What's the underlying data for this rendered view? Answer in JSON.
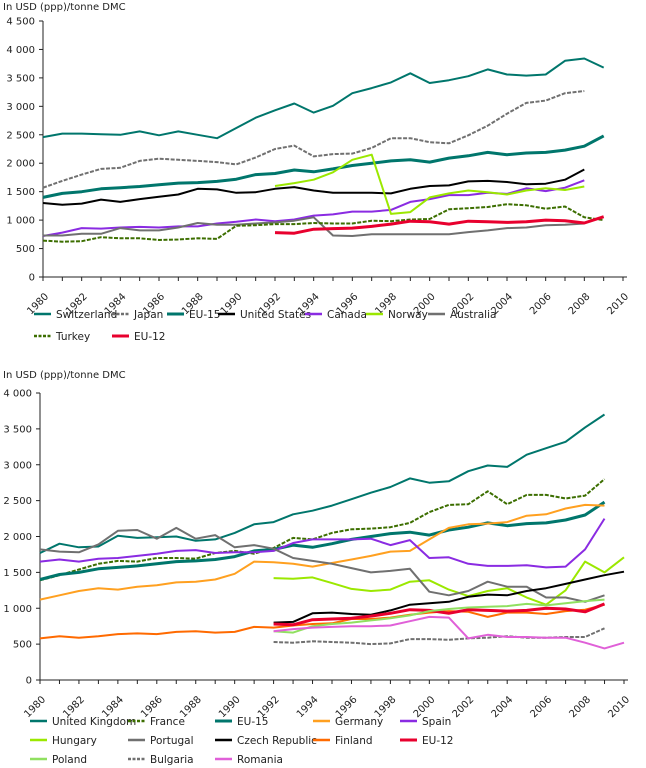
{
  "chart_data": [
    {
      "type": "line",
      "title": "",
      "ylabel": "In USD (ppp)/tonne DMC",
      "xlabel": "",
      "ylim": [
        0,
        4500
      ],
      "xlim": [
        1980,
        2010
      ],
      "yticks": [
        0,
        500,
        1000,
        1500,
        2000,
        2500,
        3000,
        3500,
        4000,
        4500
      ],
      "ytick_labels": [
        "0",
        "500",
        "1 000",
        "1 500",
        "2 000",
        "2 500",
        "3 000",
        "3 500",
        "4 000",
        "4 500"
      ],
      "xtick_labels": [
        "1980",
        "1982",
        "1984",
        "1986",
        "1988",
        "1990",
        "1992",
        "1994",
        "1996",
        "1998",
        "2000",
        "2002",
        "2004",
        "2006",
        "2008",
        "2010"
      ],
      "grid": false,
      "legend": "bottom",
      "series": [
        {
          "name": "Switzerland",
          "color": "#00766C",
          "dash": false,
          "width": 2,
          "start": 1980,
          "values": [
            2460,
            2520,
            2520,
            2510,
            2500,
            2560,
            2490,
            2560,
            2500,
            2440,
            2620,
            2800,
            2930,
            3050,
            2890,
            3010,
            3230,
            3320,
            3420,
            3580,
            3410,
            3460,
            3530,
            3650,
            3560,
            3540,
            3560,
            3800,
            3840,
            3680
          ]
        },
        {
          "name": "Japan",
          "color": "#707070",
          "dash": true,
          "width": 2,
          "start": 1980,
          "values": [
            1570,
            1690,
            1800,
            1900,
            1920,
            2040,
            2080,
            2060,
            2040,
            2020,
            1980,
            2100,
            2250,
            2310,
            2120,
            2160,
            2170,
            2270,
            2440,
            2440,
            2370,
            2350,
            2490,
            2660,
            2870,
            3060,
            3100,
            3230,
            3270
          ]
        },
        {
          "name": "EU-15",
          "color": "#00766C",
          "dash": false,
          "width": 3,
          "start": 1980,
          "values": [
            1400,
            1470,
            1500,
            1550,
            1570,
            1590,
            1620,
            1650,
            1660,
            1680,
            1720,
            1800,
            1820,
            1880,
            1850,
            1900,
            1960,
            2000,
            2040,
            2060,
            2020,
            2090,
            2130,
            2190,
            2150,
            2180,
            2190,
            2230,
            2300,
            2480
          ]
        },
        {
          "name": "United States",
          "color": "#000000",
          "dash": false,
          "width": 2,
          "start": 1980,
          "values": [
            1300,
            1270,
            1290,
            1360,
            1320,
            1370,
            1410,
            1450,
            1550,
            1540,
            1480,
            1490,
            1550,
            1580,
            1520,
            1480,
            1480,
            1480,
            1470,
            1550,
            1600,
            1610,
            1680,
            1690,
            1670,
            1630,
            1640,
            1710,
            1890
          ]
        },
        {
          "name": "Canada",
          "color": "#8A2BE2",
          "dash": false,
          "width": 2,
          "start": 1980,
          "values": [
            720,
            780,
            860,
            850,
            870,
            880,
            870,
            890,
            890,
            940,
            970,
            1010,
            980,
            1010,
            1080,
            1100,
            1150,
            1150,
            1180,
            1320,
            1370,
            1440,
            1440,
            1480,
            1460,
            1560,
            1510,
            1570,
            1700
          ]
        },
        {
          "name": "Norway",
          "color": "#9BE800",
          "dash": false,
          "width": 2,
          "start": 1992,
          "values": [
            1600,
            1650,
            1710,
            1840,
            2060,
            2150,
            1110,
            1140,
            1400,
            1470,
            1520,
            1490,
            1450,
            1520,
            1560,
            1530,
            1590
          ]
        },
        {
          "name": "Australia",
          "color": "#707070",
          "dash": false,
          "width": 2,
          "start": 1980,
          "values": [
            730,
            730,
            760,
            760,
            860,
            820,
            820,
            870,
            950,
            920,
            920,
            940,
            960,
            990,
            1050,
            730,
            720,
            750,
            750,
            750,
            750,
            750,
            790,
            820,
            860,
            870,
            910,
            920,
            940
          ]
        },
        {
          "name": "Turkey",
          "color": "#3C6E00",
          "dash": true,
          "width": 2,
          "start": 1980,
          "values": [
            640,
            620,
            630,
            700,
            680,
            680,
            650,
            660,
            680,
            670,
            900,
            910,
            930,
            930,
            950,
            940,
            940,
            990,
            980,
            1010,
            1020,
            1190,
            1210,
            1230,
            1280,
            1260,
            1200,
            1240,
            1050,
            1000
          ]
        },
        {
          "name": "EU-12",
          "color": "#E8002E",
          "dash": false,
          "width": 3,
          "start": 1992,
          "values": [
            780,
            770,
            840,
            850,
            860,
            890,
            930,
            980,
            970,
            930,
            980,
            970,
            960,
            970,
            1000,
            990,
            950,
            1060
          ]
        }
      ]
    },
    {
      "type": "line",
      "title": "",
      "ylabel": "In USD (ppp)/tonne DMC",
      "xlabel": "",
      "ylim": [
        0,
        4000
      ],
      "xlim": [
        1980,
        2010
      ],
      "yticks": [
        0,
        500,
        1000,
        1500,
        2000,
        2500,
        3000,
        3500,
        4000
      ],
      "ytick_labels": [
        "0",
        "500",
        "1 000",
        "1 500",
        "2 000",
        "2 500",
        "3 000",
        "3 500",
        "4 000"
      ],
      "xtick_labels": [
        "1980",
        "1982",
        "1984",
        "1986",
        "1988",
        "1990",
        "1992",
        "1994",
        "1996",
        "1998",
        "2000",
        "2002",
        "2004",
        "2006",
        "2008",
        "2010"
      ],
      "grid": false,
      "legend": "bottom",
      "series": [
        {
          "name": "United Kingdom",
          "color": "#00766C",
          "dash": false,
          "width": 2,
          "start": 1980,
          "values": [
            1770,
            1900,
            1850,
            1860,
            2010,
            1980,
            1990,
            2000,
            1940,
            1960,
            2050,
            2170,
            2200,
            2310,
            2360,
            2430,
            2520,
            2610,
            2690,
            2810,
            2750,
            2770,
            2910,
            2990,
            2970,
            3140,
            3230,
            3320,
            3520,
            3700
          ]
        },
        {
          "name": "France",
          "color": "#3C6E00",
          "dash": true,
          "width": 2,
          "start": 1980,
          "values": [
            1390,
            1460,
            1540,
            1620,
            1660,
            1650,
            1700,
            1700,
            1690,
            1770,
            1800,
            1760,
            1840,
            1980,
            1960,
            2050,
            2100,
            2110,
            2130,
            2190,
            2340,
            2440,
            2450,
            2630,
            2450,
            2580,
            2580,
            2530,
            2570,
            2800
          ]
        },
        {
          "name": "EU-15",
          "color": "#00766C",
          "dash": false,
          "width": 3,
          "start": 1980,
          "values": [
            1400,
            1470,
            1500,
            1550,
            1570,
            1590,
            1620,
            1650,
            1660,
            1680,
            1720,
            1800,
            1820,
            1880,
            1850,
            1900,
            1960,
            2000,
            2040,
            2060,
            2020,
            2090,
            2130,
            2190,
            2150,
            2180,
            2190,
            2230,
            2300,
            2480
          ]
        },
        {
          "name": "Germany",
          "color": "#FFA020",
          "dash": false,
          "width": 2,
          "start": 1980,
          "values": [
            1120,
            1180,
            1240,
            1280,
            1260,
            1300,
            1320,
            1360,
            1370,
            1400,
            1480,
            1650,
            1640,
            1620,
            1580,
            1630,
            1680,
            1730,
            1790,
            1800,
            1960,
            2120,
            2170,
            2180,
            2200,
            2290,
            2310,
            2390,
            2440,
            2430
          ]
        },
        {
          "name": "Spain",
          "color": "#8A2BE2",
          "dash": false,
          "width": 2,
          "start": 1980,
          "values": [
            1650,
            1680,
            1650,
            1690,
            1700,
            1730,
            1760,
            1800,
            1810,
            1770,
            1780,
            1780,
            1800,
            1910,
            1960,
            1960,
            1960,
            1970,
            1880,
            1950,
            1700,
            1710,
            1620,
            1590,
            1590,
            1600,
            1570,
            1580,
            1820,
            2250
          ]
        },
        {
          "name": "Hungary",
          "color": "#9BE800",
          "dash": false,
          "width": 2,
          "start": 1992,
          "values": [
            1420,
            1410,
            1430,
            1350,
            1270,
            1240,
            1260,
            1370,
            1390,
            1260,
            1170,
            1240,
            1280,
            1150,
            1050,
            1250,
            1650,
            1500,
            1710
          ]
        },
        {
          "name": "Portugal",
          "color": "#707070",
          "dash": false,
          "width": 2,
          "start": 1980,
          "values": [
            1820,
            1790,
            1780,
            1890,
            2080,
            2090,
            1970,
            2120,
            1970,
            2020,
            1850,
            1880,
            1830,
            1700,
            1660,
            1620,
            1560,
            1500,
            1520,
            1550,
            1230,
            1180,
            1240,
            1370,
            1300,
            1300,
            1150,
            1150,
            1090,
            1180
          ]
        },
        {
          "name": "Czech Republic",
          "color": "#000000",
          "dash": false,
          "width": 2,
          "start": 1992,
          "values": [
            800,
            810,
            930,
            940,
            920,
            910,
            970,
            1050,
            1070,
            1090,
            1160,
            1190,
            1180,
            1240,
            1280,
            1340,
            1400,
            1460,
            1510
          ]
        },
        {
          "name": "Finland",
          "color": "#FF6A00",
          "dash": false,
          "width": 2,
          "start": 1980,
          "values": [
            580,
            610,
            590,
            610,
            640,
            650,
            640,
            670,
            680,
            660,
            670,
            740,
            730,
            760,
            780,
            790,
            850,
            850,
            870,
            910,
            940,
            960,
            950,
            880,
            940,
            940,
            920,
            960,
            980,
            1050
          ]
        },
        {
          "name": "EU-12",
          "color": "#E8002E",
          "dash": false,
          "width": 3,
          "start": 1992,
          "values": [
            780,
            770,
            840,
            850,
            860,
            890,
            930,
            980,
            970,
            930,
            980,
            970,
            960,
            970,
            1000,
            990,
            950,
            1060
          ]
        },
        {
          "name": "Poland",
          "color": "#90E060",
          "dash": false,
          "width": 2,
          "start": 1992,
          "values": [
            680,
            660,
            750,
            780,
            800,
            830,
            860,
            900,
            960,
            990,
            1010,
            1020,
            1030,
            1060,
            1040,
            1070,
            1100,
            1120
          ]
        },
        {
          "name": "Bulgaria",
          "color": "#707070",
          "dash": true,
          "width": 2,
          "start": 1992,
          "values": [
            530,
            520,
            540,
            530,
            520,
            500,
            510,
            570,
            570,
            560,
            580,
            590,
            610,
            590,
            590,
            600,
            600,
            720
          ]
        },
        {
          "name": "Romania",
          "color": "#E060D8",
          "dash": false,
          "width": 2,
          "start": 1992,
          "values": [
            680,
            710,
            730,
            740,
            750,
            750,
            760,
            820,
            880,
            870,
            580,
            630,
            600,
            600,
            590,
            590,
            520,
            440,
            520
          ]
        }
      ]
    }
  ]
}
